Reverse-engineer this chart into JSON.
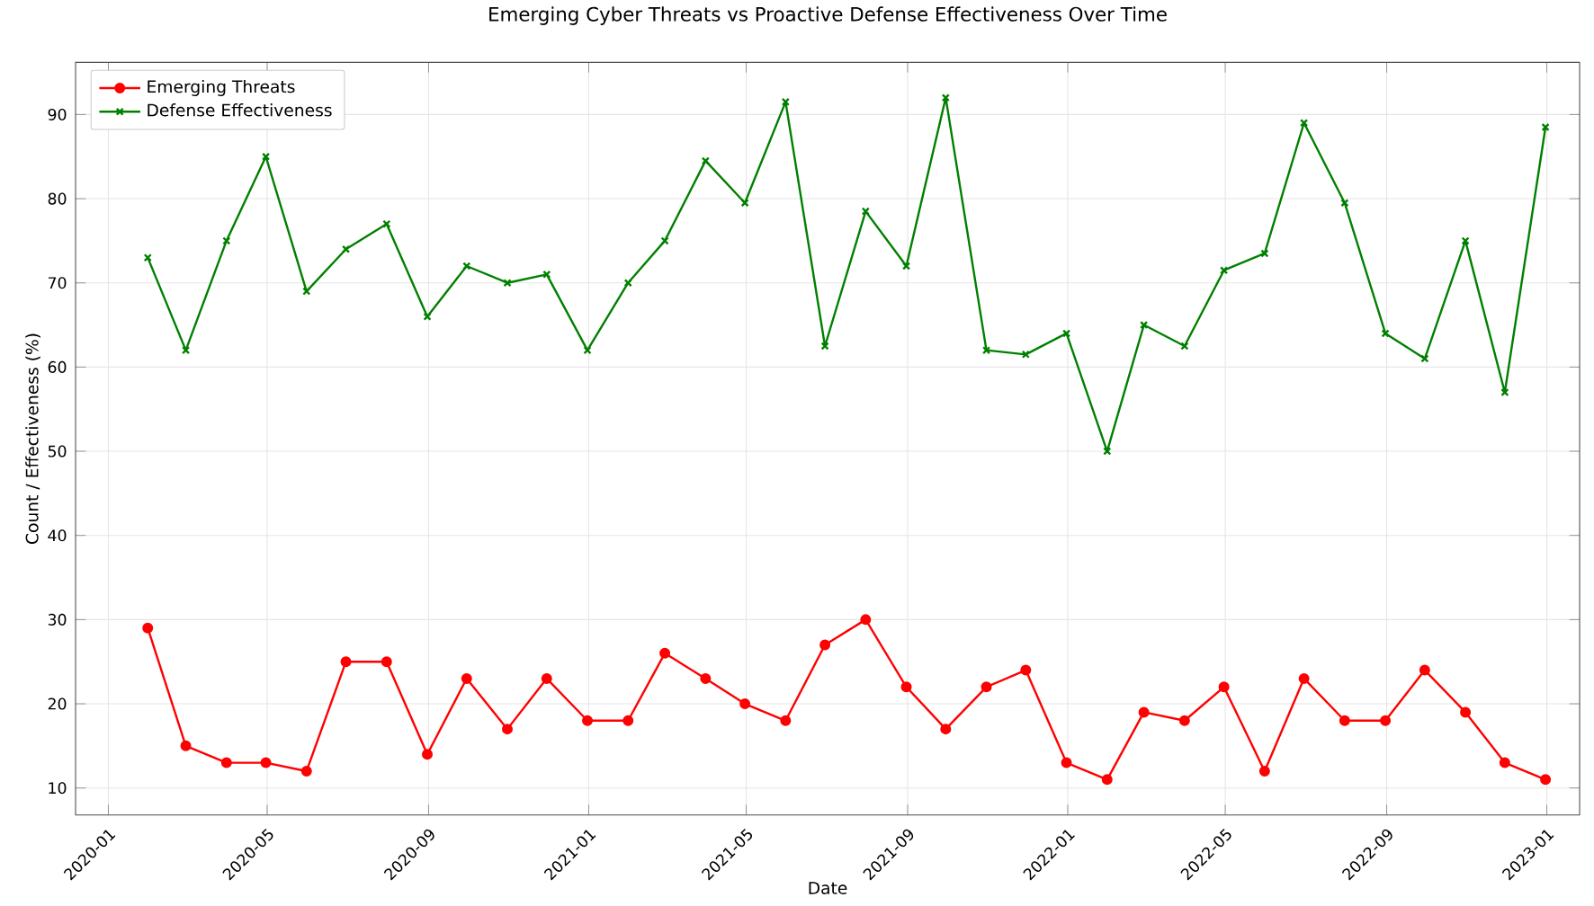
{
  "chart_data": {
    "type": "line",
    "title": "Emerging Cyber Threats vs Proactive Defense Effectiveness Over Time",
    "xlabel": "Date",
    "ylabel": "Count / Effectiveness (%)",
    "x": [
      "2020-01-31",
      "2020-02-29",
      "2020-03-31",
      "2020-04-30",
      "2020-05-31",
      "2020-06-30",
      "2020-07-31",
      "2020-08-31",
      "2020-09-30",
      "2020-10-31",
      "2020-11-30",
      "2020-12-31",
      "2021-01-31",
      "2021-02-28",
      "2021-03-31",
      "2021-04-30",
      "2021-05-31",
      "2021-06-30",
      "2021-07-31",
      "2021-08-31",
      "2021-09-30",
      "2021-10-31",
      "2021-11-30",
      "2021-12-31",
      "2022-01-31",
      "2022-02-28",
      "2022-03-31",
      "2022-04-30",
      "2022-05-31",
      "2022-06-30",
      "2022-07-31",
      "2022-08-31",
      "2022-09-30",
      "2022-10-31",
      "2022-11-30",
      "2022-12-31"
    ],
    "series": [
      {
        "name": "Emerging Threats",
        "color": "#ff0000",
        "marker": "circle",
        "values": [
          29,
          15,
          13,
          13,
          12,
          25,
          25,
          14,
          23,
          17,
          23,
          18,
          18,
          26,
          23,
          20,
          18,
          27,
          30,
          22,
          17,
          22,
          24,
          13,
          11,
          19,
          18,
          22,
          12,
          23,
          18,
          18,
          24,
          19,
          13,
          11
        ]
      },
      {
        "name": "Defense Effectiveness",
        "color": "#008000",
        "marker": "cross",
        "values": [
          73,
          62,
          75,
          85,
          69,
          74,
          77,
          66,
          72,
          70,
          71,
          62,
          70,
          75,
          84.5,
          79.5,
          91.5,
          62.5,
          78.5,
          72,
          92,
          62,
          61.5,
          64,
          50,
          65,
          62.5,
          71.5,
          73.5,
          89,
          79.5,
          64,
          61,
          75,
          57,
          88.5
        ]
      }
    ],
    "xlim": [
      "2019-12-07",
      "2023-01-26"
    ],
    "xticks": [
      {
        "value": "2020-01-01",
        "label": "2020-01"
      },
      {
        "value": "2020-05-01",
        "label": "2020-05"
      },
      {
        "value": "2020-09-01",
        "label": "2020-09"
      },
      {
        "value": "2021-01-01",
        "label": "2021-01"
      },
      {
        "value": "2021-05-01",
        "label": "2021-05"
      },
      {
        "value": "2021-09-01",
        "label": "2021-09"
      },
      {
        "value": "2022-01-01",
        "label": "2022-01"
      },
      {
        "value": "2022-05-01",
        "label": "2022-05"
      },
      {
        "value": "2022-09-01",
        "label": "2022-09"
      },
      {
        "value": "2023-01-01",
        "label": "2023-01"
      }
    ],
    "ylim": [
      6.8,
      96.2
    ],
    "yticks": [
      10,
      20,
      30,
      40,
      50,
      60,
      70,
      80,
      90
    ],
    "grid": true,
    "legend": "top left",
    "line_style": "solid"
  }
}
